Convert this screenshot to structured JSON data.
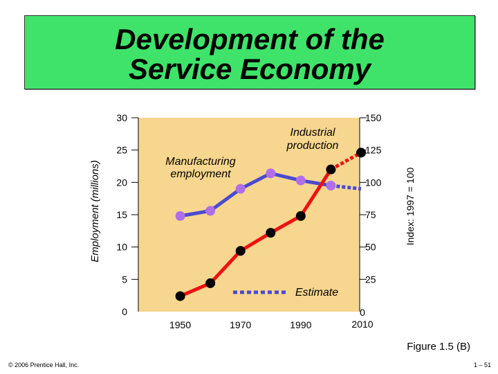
{
  "title": {
    "line1": "Development of the",
    "line2": "Service Economy"
  },
  "chart_data": {
    "type": "line",
    "ylabel": "Employment (millions)",
    "y2label": "Index: 1997 = 100",
    "ylim": [
      0,
      30
    ],
    "y2lim": [
      0,
      150
    ],
    "yticks": [
      "0",
      "5",
      "10",
      "15",
      "20",
      "25",
      "30"
    ],
    "y2ticks": [
      "0",
      "25",
      "50",
      "75",
      "100",
      "125",
      "150"
    ],
    "xlim": [
      1940,
      2010
    ],
    "xticks": [
      "1950",
      "1970",
      "1990",
      "2010"
    ],
    "series": [
      {
        "name": "Manufacturing employment",
        "axis": "left",
        "color": "#4a4ad0",
        "marker": "#b06ee8",
        "x": [
          1950,
          1960,
          1970,
          1980,
          1990,
          2000
        ],
        "y": [
          14.8,
          15.6,
          19.0,
          21.4,
          20.3,
          19.5
        ]
      },
      {
        "name": "Industrial production",
        "axis": "right",
        "color": "#ee1111",
        "marker": "#000000",
        "x": [
          1950,
          1960,
          1970,
          1980,
          1990,
          2000
        ],
        "y": [
          12,
          22,
          47,
          61,
          74,
          110
        ]
      }
    ],
    "estimate": {
      "label": "Estimate",
      "manufacturing": {
        "x": [
          2000,
          2010
        ],
        "y": [
          19.5,
          19.0
        ]
      },
      "production": {
        "x": [
          2000,
          2010
        ],
        "y": [
          110,
          123
        ]
      }
    }
  },
  "footer": {
    "copyright": "© 2006 Prentice Hall, Inc.",
    "page": "1 – 51",
    "figure": "Figure 1.5 (B)"
  }
}
